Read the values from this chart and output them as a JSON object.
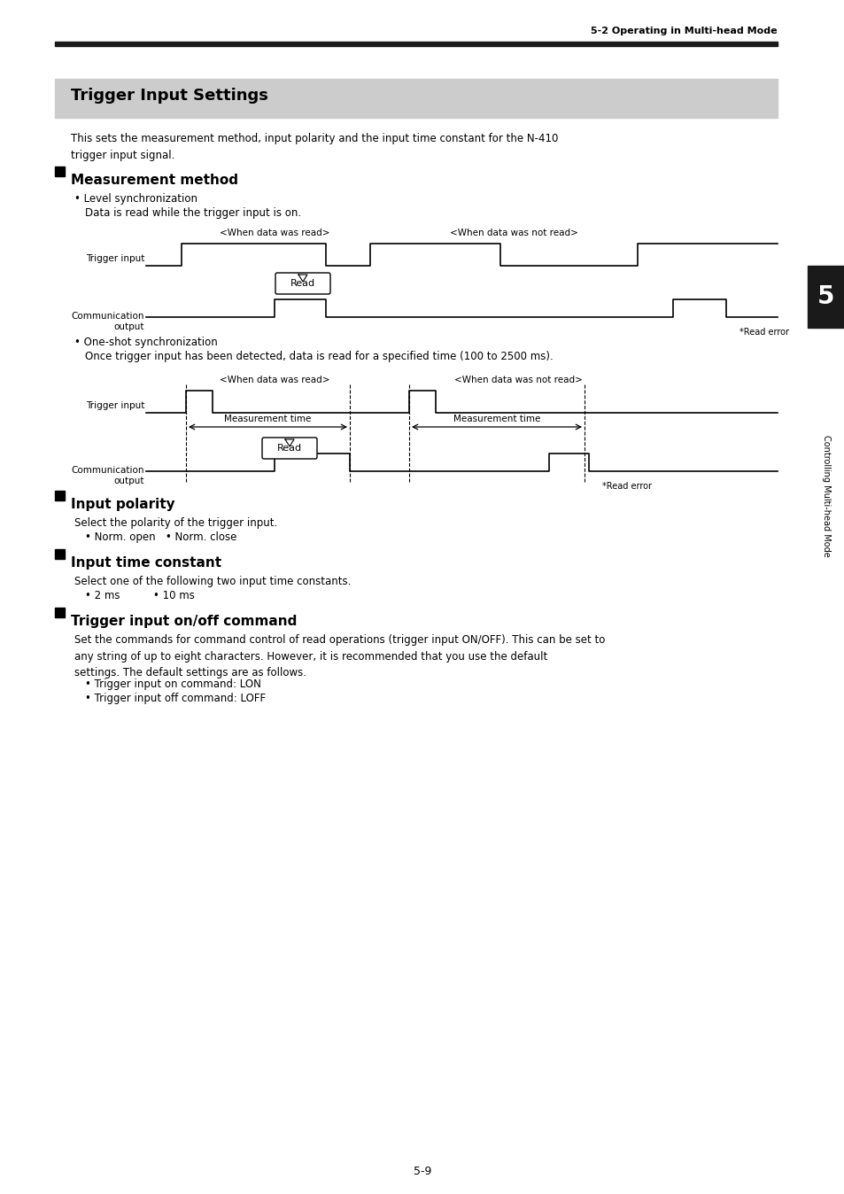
{
  "page_header": "5-2 Operating in Multi-head Mode",
  "title_box_text": "Trigger Input Settings",
  "title_box_bg": "#cccccc",
  "intro_text": "This sets the measurement method, input polarity and the input time constant for the N-410\ntrigger input signal.",
  "section1_title": "Measurement method",
  "section1_bullet1": "Level synchronization",
  "section1_bullet1_sub": "Data is read while the trigger input is on.",
  "section1_diagram1_label1": "<When data was read>",
  "section1_diagram1_label2": "<When data was not read>",
  "section1_trigger_label": "Trigger input",
  "section1_comm_label": "Communication\noutput",
  "section1_read_label": "Read",
  "section1_read_error": "*Read error",
  "section1_bullet2": "One-shot synchronization",
  "section1_bullet2_sub": "Once trigger input has been detected, data is read for a specified time (100 to 2500 ms).",
  "section2_diagram_label1": "<When data was read>",
  "section2_diagram_label2": "<When data was not read>",
  "section2_trigger_label": "Trigger input",
  "section2_comm_label": "Communication\noutput",
  "section2_read_label": "Read",
  "section2_read_error": "*Read error",
  "section2_meas_time1": "Measurement time",
  "section2_meas_time2": "Measurement time",
  "section3_title": "Input polarity",
  "section3_text": "Select the polarity of the trigger input.",
  "section3_bullet": "• Norm. open   • Norm. close",
  "section4_title": "Input time constant",
  "section4_text": "Select one of the following two input time constants.",
  "section4_bullet": "• 2 ms          • 10 ms",
  "section5_title": "Trigger input on/off command",
  "section5_text": "Set the commands for command control of read operations (trigger input ON/OFF). This can be set to\nany string of up to eight characters. However, it is recommended that you use the default\nsettings. The default settings are as follows.",
  "section5_bullet1": "• Trigger input on command: LON",
  "section5_bullet2": "• Trigger input off command: LOFF",
  "sidebar_text": "Controlling Multi-head Mode",
  "sidebar_number": "5",
  "page_number": "5-9",
  "bg_color": "#ffffff",
  "text_color": "#000000",
  "line_color": "#000000",
  "header_bar_color": "#1a1a1a",
  "sidebar_bg": "#1a1a1a"
}
